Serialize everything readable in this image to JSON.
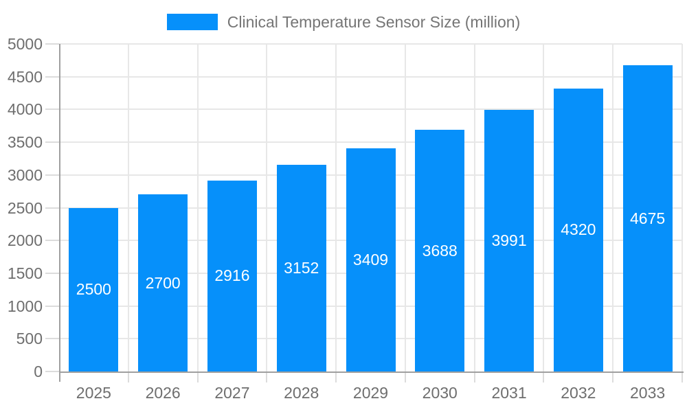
{
  "chart_data": {
    "type": "bar",
    "title": "Clinical Temperature Sensor Size (million)",
    "series_name": "Clinical Temperature Sensor Size (million)",
    "categories": [
      "2025",
      "2026",
      "2027",
      "2028",
      "2029",
      "2030",
      "2031",
      "2032",
      "2033"
    ],
    "values": [
      2500,
      2700,
      2916,
      3152,
      3409,
      3688,
      3991,
      4320,
      4675
    ],
    "xlabel": "",
    "ylabel": "",
    "ylim": [
      0,
      5000
    ],
    "yticks": [
      0,
      500,
      1000,
      1500,
      2000,
      2500,
      3000,
      3500,
      4000,
      4500,
      5000
    ],
    "grid": true,
    "legend_position": "top",
    "value_label_position": "inside-center",
    "colors": {
      "bar": "#0690fa",
      "bar_label": "#ffffff",
      "legend_text": "#757575",
      "axis_text": "#6e6e6e",
      "grid": "#e7e7e7",
      "axis_line": "#9f9f9f",
      "tick": "#dcdcdc",
      "background": "#ffffff"
    }
  }
}
